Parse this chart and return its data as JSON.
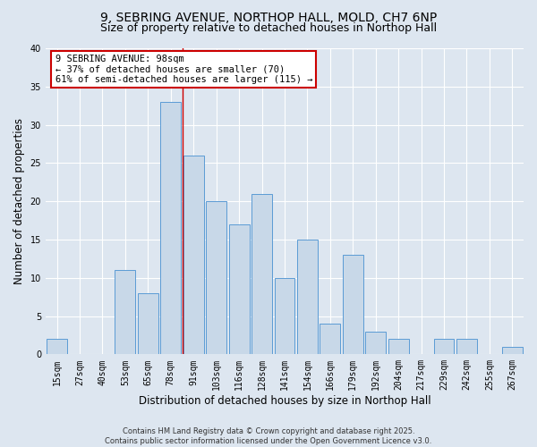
{
  "title1": "9, SEBRING AVENUE, NORTHOP HALL, MOLD, CH7 6NP",
  "title2": "Size of property relative to detached houses in Northop Hall",
  "xlabel": "Distribution of detached houses by size in Northop Hall",
  "ylabel": "Number of detached properties",
  "categories": [
    "15sqm",
    "27sqm",
    "40sqm",
    "53sqm",
    "65sqm",
    "78sqm",
    "91sqm",
    "103sqm",
    "116sqm",
    "128sqm",
    "141sqm",
    "154sqm",
    "166sqm",
    "179sqm",
    "192sqm",
    "204sqm",
    "217sqm",
    "229sqm",
    "242sqm",
    "255sqm",
    "267sqm"
  ],
  "values": [
    2,
    0,
    0,
    11,
    8,
    33,
    26,
    20,
    17,
    21,
    10,
    15,
    4,
    13,
    3,
    2,
    0,
    2,
    2,
    0,
    1
  ],
  "bar_color": "#c8d8e8",
  "bar_edge_color": "#5b9bd5",
  "vline_color": "#cc0000",
  "annotation_text": "9 SEBRING AVENUE: 98sqm\n← 37% of detached houses are smaller (70)\n61% of semi-detached houses are larger (115) →",
  "annotation_box_color": "#ffffff",
  "annotation_box_edge": "#cc0000",
  "background_color": "#dde6f0",
  "plot_bg_color": "#dde6f0",
  "footer_text": "Contains HM Land Registry data © Crown copyright and database right 2025.\nContains public sector information licensed under the Open Government Licence v3.0.",
  "ylim": [
    0,
    40
  ],
  "yticks": [
    0,
    5,
    10,
    15,
    20,
    25,
    30,
    35,
    40
  ],
  "title_fontsize": 10,
  "subtitle_fontsize": 9,
  "tick_fontsize": 7,
  "label_fontsize": 8.5,
  "annotation_fontsize": 7.5,
  "footer_fontsize": 6
}
